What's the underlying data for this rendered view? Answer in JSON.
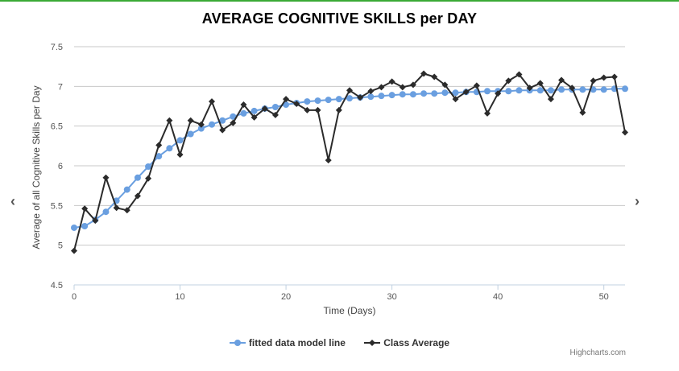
{
  "chart_data": {
    "type": "line",
    "title": "AVERAGE COGNITIVE SKILLS per DAY",
    "xlabel": "Time (Days)",
    "ylabel": "Average of all Cognitive Skills per Day",
    "xlim": [
      0,
      52
    ],
    "ylim": [
      4.5,
      7.5
    ],
    "xticks": [
      0,
      10,
      20,
      30,
      40,
      50
    ],
    "yticks": [
      4.5,
      5,
      5.5,
      6,
      6.5,
      7,
      7.5
    ],
    "grid": true,
    "legend_position": "bottom",
    "x": [
      0,
      1,
      2,
      3,
      4,
      5,
      6,
      7,
      8,
      9,
      10,
      11,
      12,
      13,
      14,
      15,
      16,
      17,
      18,
      19,
      20,
      21,
      22,
      23,
      24,
      25,
      26,
      27,
      28,
      29,
      30,
      31,
      32,
      33,
      34,
      35,
      36,
      37,
      38,
      39,
      40,
      41,
      42,
      43,
      44,
      45,
      46,
      47,
      48,
      49,
      50,
      51,
      52
    ],
    "series": [
      {
        "name": "fitted data model line",
        "color": "#6a9fe0",
        "marker": "circle",
        "values": [
          5.22,
          5.24,
          5.32,
          5.42,
          5.56,
          5.7,
          5.85,
          5.99,
          6.12,
          6.22,
          6.32,
          6.4,
          6.47,
          6.52,
          6.57,
          6.62,
          6.66,
          6.69,
          6.72,
          6.74,
          6.77,
          6.79,
          6.81,
          6.82,
          6.83,
          6.84,
          6.85,
          6.86,
          6.87,
          6.88,
          6.89,
          6.9,
          6.9,
          6.91,
          6.91,
          6.92,
          6.92,
          6.93,
          6.93,
          6.94,
          6.94,
          6.94,
          6.95,
          6.95,
          6.95,
          6.95,
          6.96,
          6.96,
          6.96,
          6.96,
          6.96,
          6.97,
          6.97
        ]
      },
      {
        "name": "Class Average",
        "color": "#2b2b2b",
        "marker": "diamond",
        "values": [
          4.93,
          5.46,
          5.31,
          5.85,
          5.47,
          5.44,
          5.62,
          5.84,
          6.26,
          6.57,
          6.14,
          6.57,
          6.52,
          6.81,
          6.45,
          6.54,
          6.77,
          6.61,
          6.72,
          6.64,
          6.84,
          6.78,
          6.7,
          6.7,
          6.07,
          6.7,
          6.95,
          6.86,
          6.94,
          6.99,
          7.06,
          6.99,
          7.02,
          7.16,
          7.12,
          7.02,
          6.84,
          6.93,
          7.01,
          6.66,
          6.91,
          7.07,
          7.15,
          6.98,
          7.04,
          6.84,
          7.08,
          6.98,
          6.67,
          7.07,
          7.11,
          7.12,
          6.42
        ]
      }
    ]
  },
  "ui": {
    "nav_prev": "‹",
    "nav_next": "›",
    "credits": "Highcharts.com"
  }
}
